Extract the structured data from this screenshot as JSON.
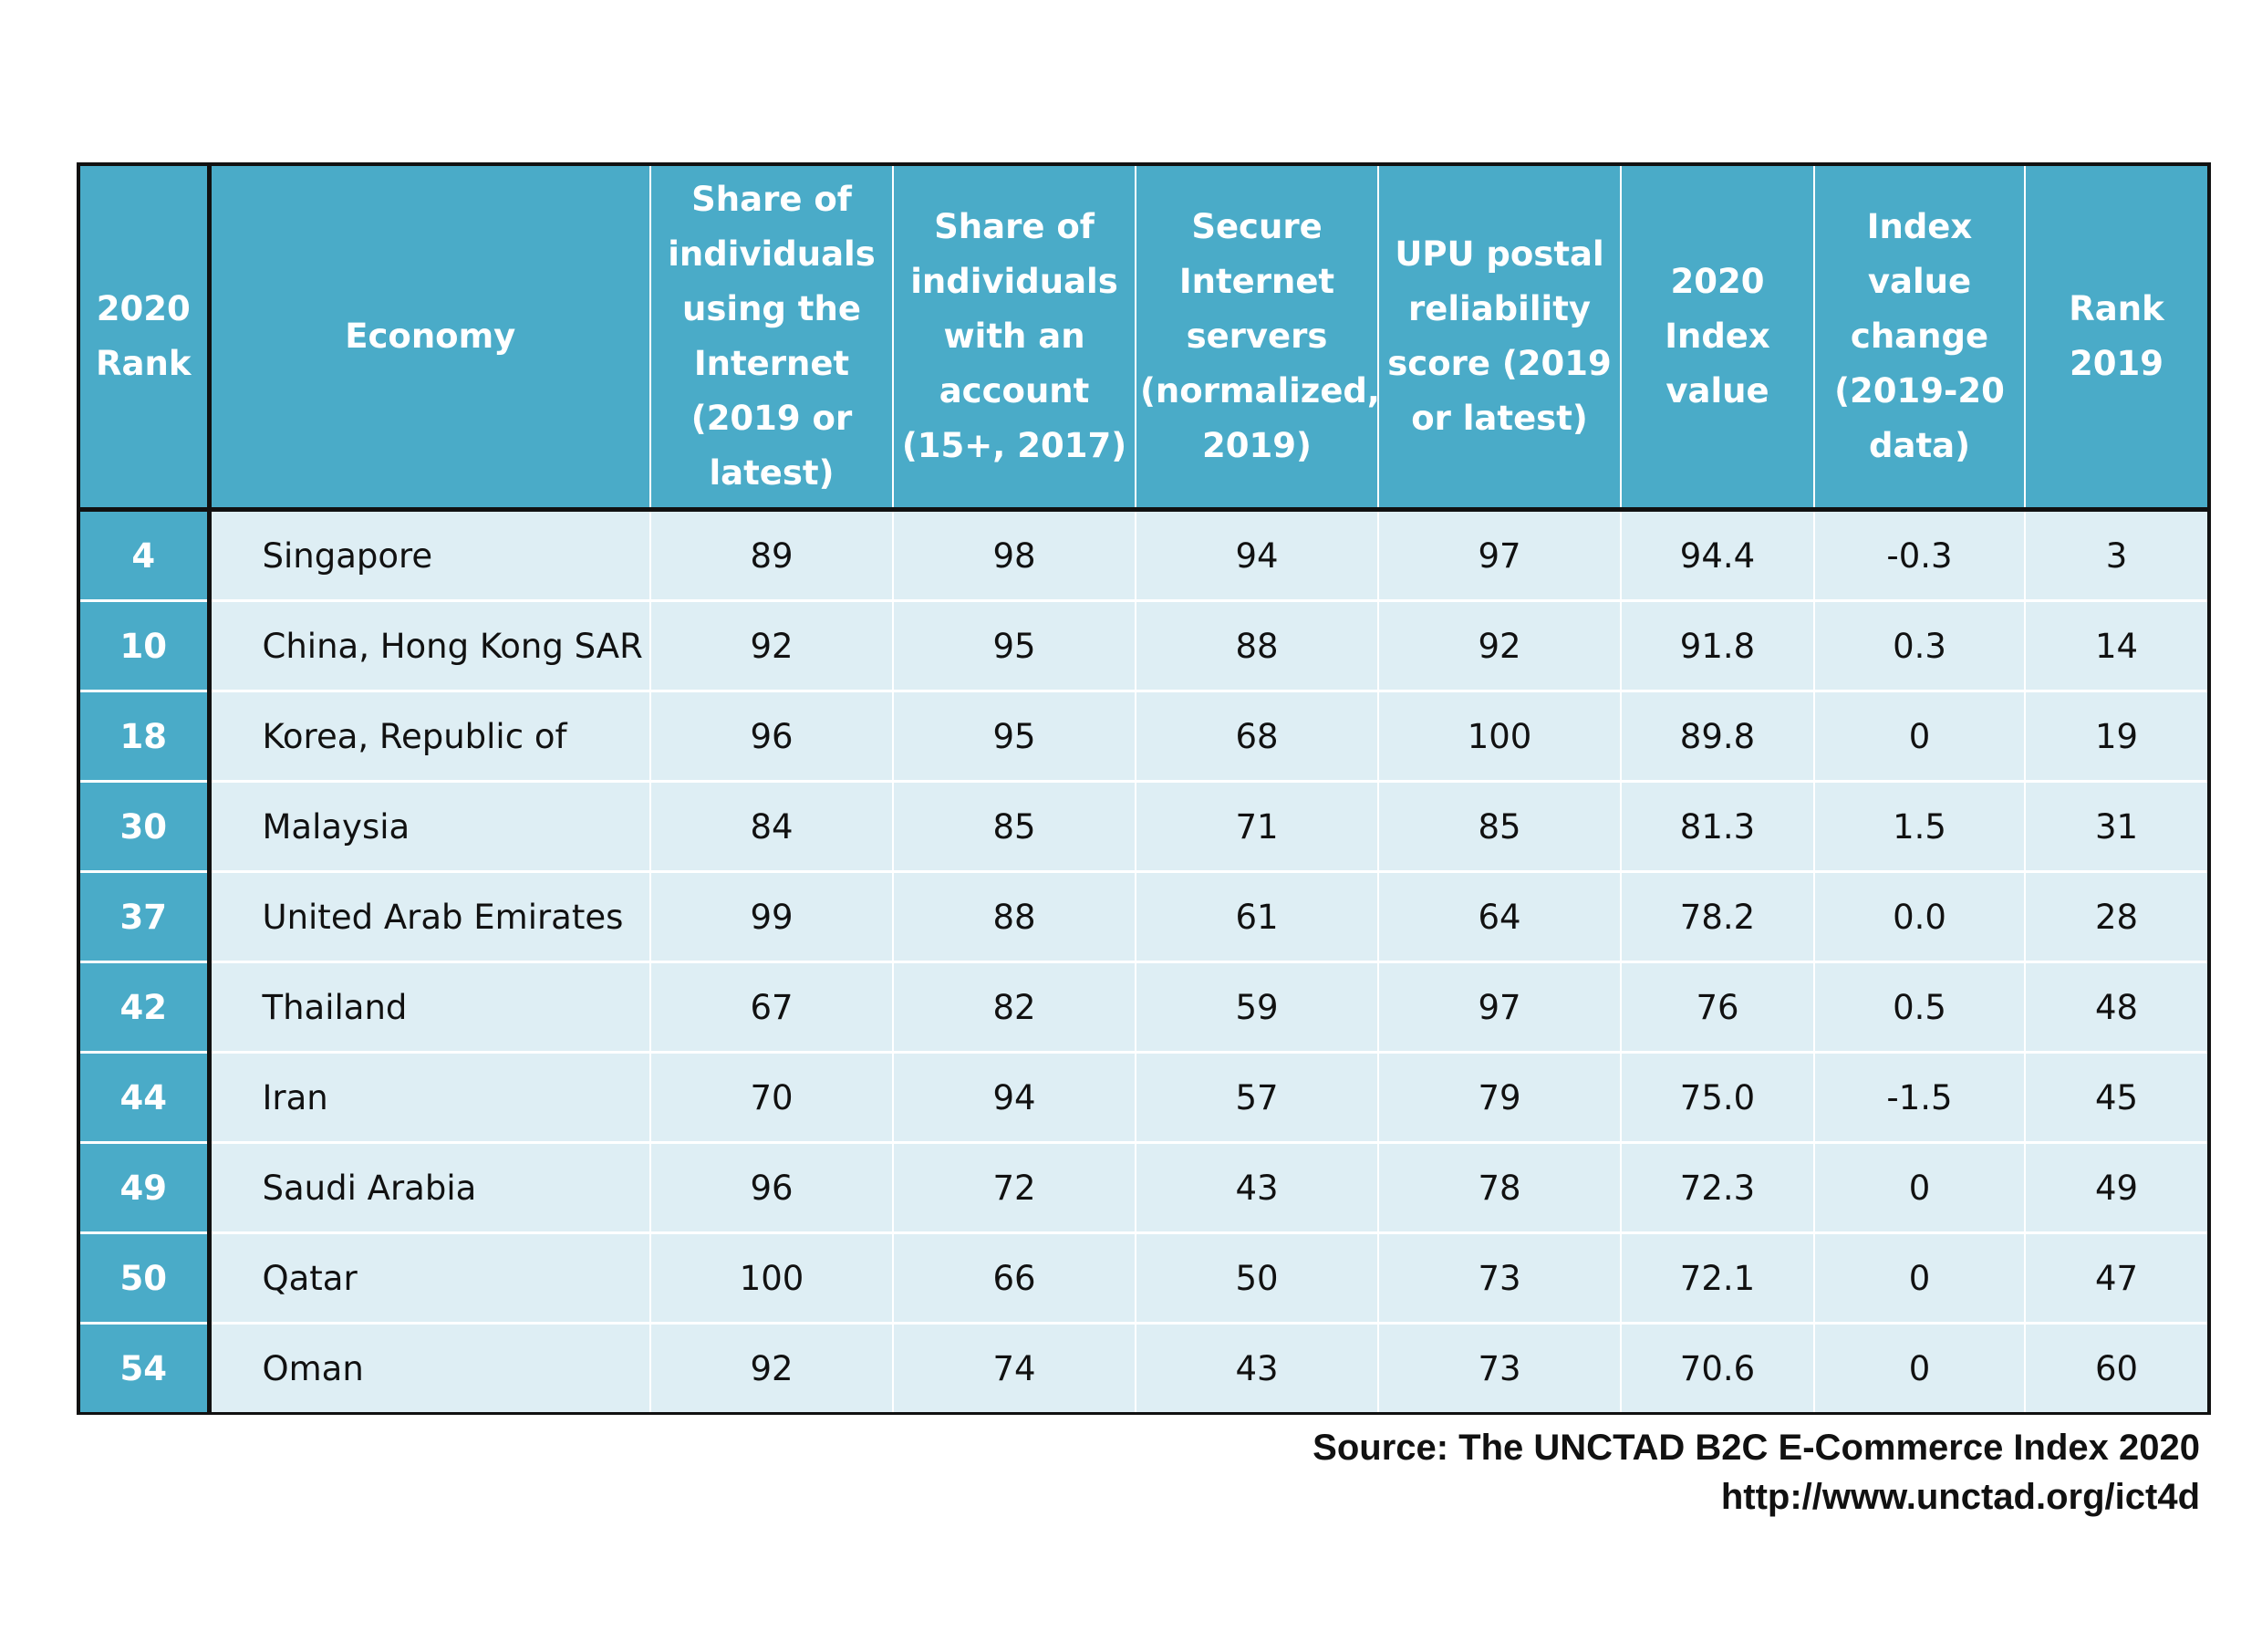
{
  "chart_data": {
    "type": "table",
    "columns": [
      "2020 Rank",
      "Economy",
      "Share of individuals using the Internet (2019 or latest)",
      "Share of individuals with an account (15+, 2017)",
      "Secure Internet servers (normalized, 2019)",
      "UPU postal reliability score (2019 or latest)",
      "2020 Index value",
      "Index value change (2019-20 data)",
      "Rank 2019"
    ],
    "rows": [
      [
        "4",
        "Singapore",
        "89",
        "98",
        "94",
        "97",
        "94.4",
        "-0.3",
        "3"
      ],
      [
        "10",
        "China, Hong Kong SAR",
        "92",
        "95",
        "88",
        "92",
        "91.8",
        "0.3",
        "14"
      ],
      [
        "18",
        "Korea, Republic of",
        "96",
        "95",
        "68",
        "100",
        "89.8",
        "0",
        "19"
      ],
      [
        "30",
        "Malaysia",
        "84",
        "85",
        "71",
        "85",
        "81.3",
        "1.5",
        "31"
      ],
      [
        "37",
        "United Arab Emirates",
        "99",
        "88",
        "61",
        "64",
        "78.2",
        "0.0",
        "28"
      ],
      [
        "42",
        "Thailand",
        "67",
        "82",
        "59",
        "97",
        "76",
        "0.5",
        "48"
      ],
      [
        "44",
        "Iran",
        "70",
        "94",
        "57",
        "79",
        "75.0",
        "-1.5",
        "45"
      ],
      [
        "49",
        "Saudi Arabia",
        "96",
        "72",
        "43",
        "78",
        "72.3",
        "0",
        "49"
      ],
      [
        "50",
        "Qatar",
        "100",
        "66",
        "50",
        "73",
        "72.1",
        "0",
        "47"
      ],
      [
        "54",
        "Oman",
        "92",
        "74",
        "43",
        "73",
        "70.6",
        "0",
        "60"
      ]
    ]
  },
  "source": {
    "line1": "Source:  The UNCTAD B2C E-Commerce Index 2020",
    "line2": "http://www.unctad.org/ict4d"
  },
  "colors": {
    "header_bg": "#4aabc8",
    "row_bg": "#deeef4",
    "header_text": "#ffffff",
    "border": "#111111"
  }
}
